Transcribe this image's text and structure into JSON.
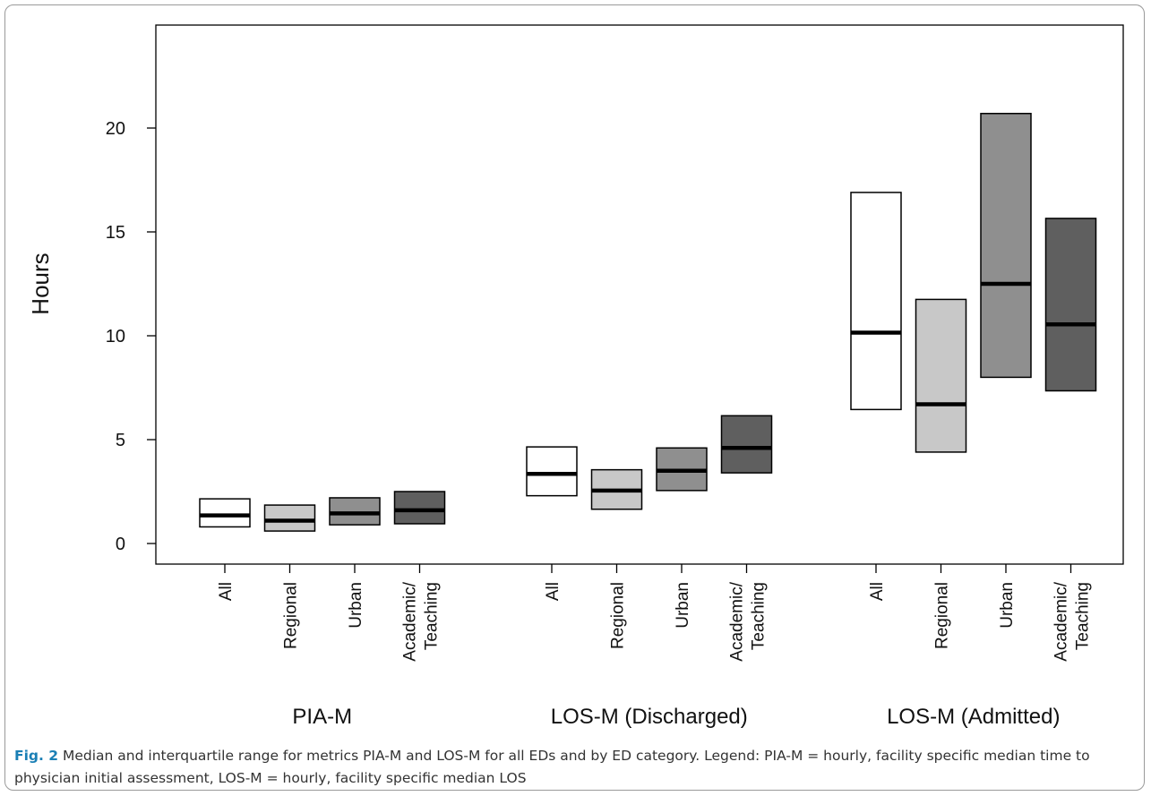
{
  "chart_data": {
    "type": "box",
    "ylabel": "Hours",
    "ylim": [
      -1,
      25
    ],
    "yticks": [
      0,
      5,
      10,
      15,
      20
    ],
    "groups": [
      {
        "name": "PIA-M",
        "categories": [
          {
            "label": [
              "All"
            ],
            "q1": 0.8,
            "median": 1.35,
            "q3": 2.15,
            "color": "#ffffff"
          },
          {
            "label": [
              "Regional"
            ],
            "q1": 0.6,
            "median": 1.1,
            "q3": 1.85,
            "color": "#c8c8c8"
          },
          {
            "label": [
              "Urban"
            ],
            "q1": 0.9,
            "median": 1.45,
            "q3": 2.2,
            "color": "#8f8f8f"
          },
          {
            "label": [
              "Academic/",
              "Teaching"
            ],
            "q1": 0.95,
            "median": 1.6,
            "q3": 2.5,
            "color": "#5f5f5f"
          }
        ]
      },
      {
        "name": "LOS-M (Discharged)",
        "categories": [
          {
            "label": [
              "All"
            ],
            "q1": 2.3,
            "median": 3.35,
            "q3": 4.65,
            "color": "#ffffff"
          },
          {
            "label": [
              "Regional"
            ],
            "q1": 1.65,
            "median": 2.55,
            "q3": 3.55,
            "color": "#c8c8c8"
          },
          {
            "label": [
              "Urban"
            ],
            "q1": 2.55,
            "median": 3.5,
            "q3": 4.6,
            "color": "#8f8f8f"
          },
          {
            "label": [
              "Academic/",
              "Teaching"
            ],
            "q1": 3.4,
            "median": 4.6,
            "q3": 6.15,
            "color": "#5f5f5f"
          }
        ]
      },
      {
        "name": "LOS-M (Admitted)",
        "categories": [
          {
            "label": [
              "All"
            ],
            "q1": 6.45,
            "median": 10.15,
            "q3": 16.9,
            "color": "#ffffff"
          },
          {
            "label": [
              "Regional"
            ],
            "q1": 4.4,
            "median": 6.7,
            "q3": 11.75,
            "color": "#c8c8c8"
          },
          {
            "label": [
              "Urban"
            ],
            "q1": 8.0,
            "median": 12.5,
            "q3": 20.7,
            "color": "#8f8f8f"
          },
          {
            "label": [
              "Academic/",
              "Teaching"
            ],
            "q1": 7.35,
            "median": 10.55,
            "q3": 15.65,
            "color": "#5f5f5f"
          }
        ]
      }
    ]
  },
  "caption": {
    "fig_label": "Fig. 2",
    "text": " Median and interquartile range for metrics PIA-M and LOS-M for all EDs and by ED category. Legend: PIA-M = hourly, facility specific median time to physician initial assessment, LOS-M = hourly, facility specific median LOS"
  }
}
